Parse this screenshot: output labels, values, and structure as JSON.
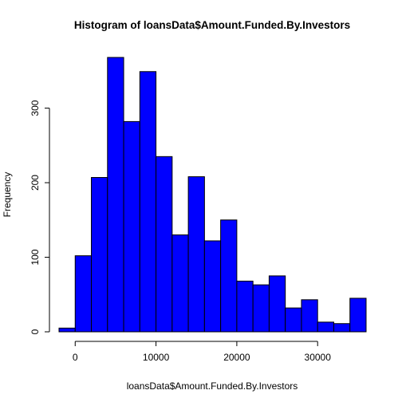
{
  "chart_data": {
    "type": "bar",
    "title": "Histogram of loansData$Amount.Funded.By.Investors",
    "xlabel": "loansData$Amount.Funded.By.Investors",
    "ylabel": "Frequency",
    "bar_color": "#0000ff",
    "bin_edges": [
      -2000,
      0,
      2000,
      4000,
      6000,
      8000,
      10000,
      12000,
      14000,
      16000,
      18000,
      20000,
      22000,
      24000,
      26000,
      28000,
      30000,
      32000,
      34000,
      36000
    ],
    "values": [
      5,
      102,
      207,
      368,
      282,
      349,
      235,
      130,
      208,
      122,
      150,
      68,
      63,
      75,
      32,
      43,
      13,
      11,
      45
    ],
    "xlim": [
      -2000,
      36000
    ],
    "ylim": [
      0,
      368
    ],
    "x_ticks": [
      0,
      10000,
      20000,
      30000
    ],
    "x_tick_labels": [
      "0",
      "10000",
      "20000",
      "30000"
    ],
    "y_ticks": [
      0,
      100,
      200,
      300
    ],
    "y_tick_labels": [
      "0",
      "100",
      "200",
      "300"
    ],
    "grid": false
  }
}
